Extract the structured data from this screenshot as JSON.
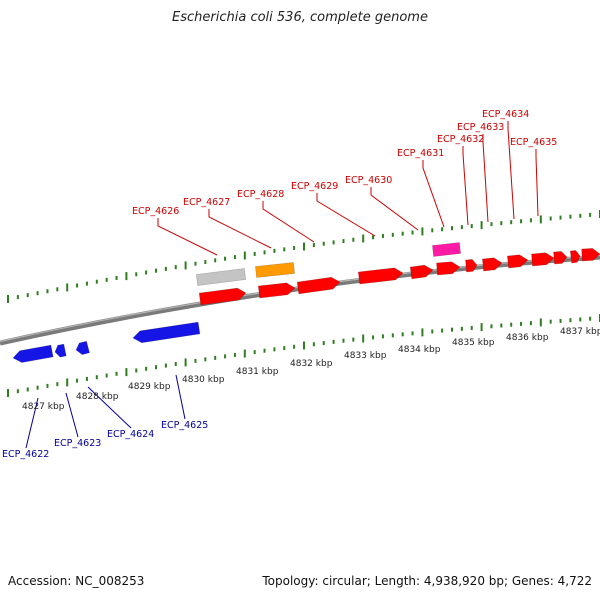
{
  "title": "Escherichia coli 536, complete genome",
  "footer": {
    "accession": "Accession: NC_008253",
    "summary": "Topology: circular; Length: 4,938,920 bp; Genes: 4,722"
  },
  "colors": {
    "top_labels": "#cc0000",
    "bottom_labels": "#000099",
    "ticks": "#2e7d1e",
    "backbone": "#7a7a7a",
    "gene_red": "#ff0000",
    "gene_blue": "#1515e6",
    "gene_grey": "#c4c4c4",
    "gene_orange": "#ff9a00",
    "gene_pink": "#ff1aa6"
  },
  "axis_labels": [
    "4827 kbp",
    "4828 kbp",
    "4829 kbp",
    "4830 kbp",
    "4831 kbp",
    "4832 kbp",
    "4833 kbp",
    "4834 kbp",
    "4835 kbp",
    "4836 kbp",
    "4837 kbp"
  ],
  "top_gene_labels": [
    "ECP_4626",
    "ECP_4627",
    "ECP_4628",
    "ECP_4629",
    "ECP_4630",
    "ECP_4631",
    "ECP_4632",
    "ECP_4633",
    "ECP_4634",
    "ECP_4635"
  ],
  "bottom_gene_labels": [
    "ECP_4622",
    "ECP_4623",
    "ECP_4624",
    "ECP_4625"
  ]
}
